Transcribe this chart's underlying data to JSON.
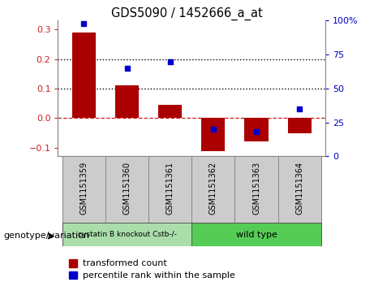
{
  "title": "GDS5090 / 1452666_a_at",
  "samples": [
    "GSM1151359",
    "GSM1151360",
    "GSM1151361",
    "GSM1151362",
    "GSM1151363",
    "GSM1151364"
  ],
  "transformed_count": [
    0.29,
    0.112,
    0.045,
    -0.112,
    -0.078,
    -0.052
  ],
  "percentile_rank": [
    98,
    65,
    70,
    20,
    18,
    35
  ],
  "bar_color": "#aa0000",
  "dot_color": "#0000cc",
  "ylim_left": [
    -0.13,
    0.33
  ],
  "ylim_right": [
    0,
    100
  ],
  "y_ticks_left": [
    -0.1,
    0.0,
    0.1,
    0.2,
    0.3
  ],
  "y_ticks_right": [
    0,
    25,
    50,
    75,
    100
  ],
  "y_tick_labels_right": [
    "0",
    "25",
    "50",
    "75",
    "100%"
  ],
  "group1_label": "cystatin B knockout Cstb-/-",
  "group2_label": "wild type",
  "group1_indices": [
    0,
    1,
    2
  ],
  "group2_indices": [
    3,
    4,
    5
  ],
  "group1_color": "#aaddaa",
  "group2_color": "#55cc55",
  "genotype_label": "genotype/variation",
  "legend_bar_label": "transformed count",
  "legend_dot_label": "percentile rank within the sample",
  "zero_line_color": "#cc2222",
  "dotted_line_color": "#000000",
  "bar_width": 0.55,
  "sample_bg_color": "#cccccc",
  "sample_border_color": "#888888"
}
